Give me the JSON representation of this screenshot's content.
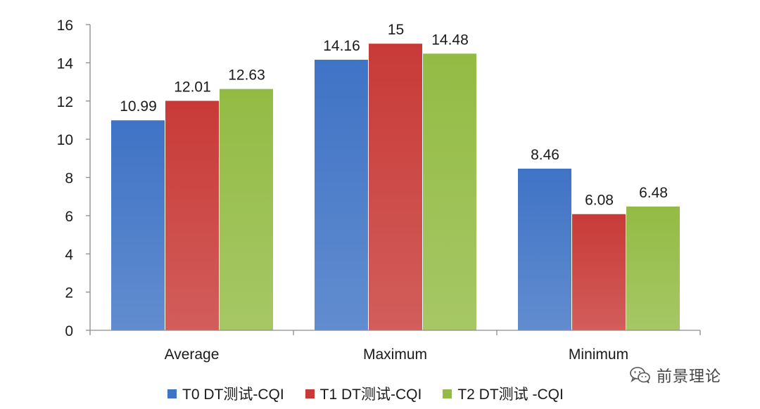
{
  "chart_data": {
    "type": "bar",
    "categories": [
      "Average",
      "Maximum",
      "Minimum"
    ],
    "series": [
      {
        "name": "T0 DT测试-CQI",
        "values": [
          10.99,
          14.16,
          8.46
        ],
        "color": "#3f73c5",
        "labels": [
          "10.99",
          "14.16",
          "8.46"
        ]
      },
      {
        "name": "T1 DT测试-CQI",
        "values": [
          12.01,
          15,
          6.08
        ],
        "color": "#c83a37",
        "labels": [
          "12.01",
          "15",
          "6.08"
        ]
      },
      {
        "name": "T2 DT测试 -CQI",
        "values": [
          12.63,
          14.48,
          6.48
        ],
        "color": "#93bb44",
        "labels": [
          "12.63",
          "14.48",
          "6.48"
        ]
      }
    ],
    "yticks": [
      "0",
      "2",
      "4",
      "6",
      "8",
      "10",
      "12",
      "14",
      "16"
    ],
    "ylim": [
      0,
      16
    ],
    "grid": false,
    "legend_position": "bottom"
  },
  "watermark": {
    "text": "前景理论",
    "icon": "wechat-icon"
  }
}
